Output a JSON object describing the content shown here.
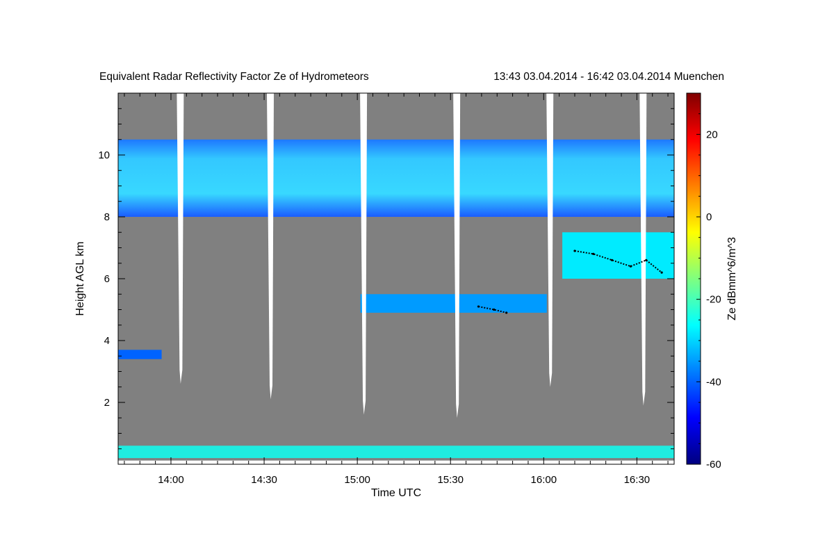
{
  "chart_data": {
    "type": "heatmap",
    "title": "Equivalent Radar Reflectivity Factor Ze of Hydrometeors",
    "time_range_label": "13:43 03.04.2014 - 16:42 03.04.2014 Muenchen",
    "xlabel": "Time UTC",
    "ylabel": "Height AGL km",
    "colorbar_label": "Ze dBmm^6/m^3",
    "x_range_minutes_utc": [
      823,
      1002
    ],
    "y_range_km": [
      0,
      12
    ],
    "x_ticks": [
      {
        "minute": 840,
        "label": "14:00"
      },
      {
        "minute": 870,
        "label": "14:30"
      },
      {
        "minute": 900,
        "label": "15:00"
      },
      {
        "minute": 930,
        "label": "15:30"
      },
      {
        "minute": 960,
        "label": "16:00"
      },
      {
        "minute": 990,
        "label": "16:30"
      }
    ],
    "y_ticks": [
      {
        "value": 2,
        "label": "2"
      },
      {
        "value": 4,
        "label": "4"
      },
      {
        "value": 6,
        "label": "6"
      },
      {
        "value": 8,
        "label": "8"
      },
      {
        "value": 10,
        "label": "10"
      }
    ],
    "colorbar_range_dbz": [
      -60,
      30
    ],
    "colorbar_ticks": [
      {
        "value": -60,
        "label": "-60"
      },
      {
        "value": -40,
        "label": "-40"
      },
      {
        "value": -20,
        "label": "-20"
      },
      {
        "value": 0,
        "label": "0"
      },
      {
        "value": 20,
        "label": "20"
      }
    ],
    "colors": {
      "background_no_signal": "#808080",
      "missing_data": "#ffffff",
      "melting_layer_marker": "#000000"
    },
    "colormap": [
      "#00007f",
      "#0000ff",
      "#007fff",
      "#00ffff",
      "#7fff7f",
      "#ffff00",
      "#ff7f00",
      "#ff0000",
      "#7f0000"
    ],
    "cloud_regions": [
      {
        "name": "cirrus-layer",
        "start_min": 823,
        "end_min": 1002,
        "base_km": 8.0,
        "top_km": 10.5,
        "ze_dbz": -30
      },
      {
        "name": "mid-level-cloud",
        "start_min": 966,
        "end_min": 1002,
        "base_km": 6.0,
        "top_km": 7.5,
        "ze_dbz": -28
      },
      {
        "name": "mid-level-band",
        "start_min": 901,
        "end_min": 961,
        "base_km": 4.9,
        "top_km": 5.5,
        "ze_dbz": -35
      },
      {
        "name": "low-fragment",
        "start_min": 823,
        "end_min": 837,
        "base_km": 3.4,
        "top_km": 3.7,
        "ze_dbz": -40
      },
      {
        "name": "near-surface-clutter",
        "start_min": 823,
        "end_min": 1002,
        "base_km": 0.2,
        "top_km": 0.6,
        "ze_dbz": -25
      }
    ],
    "missing_data_gaps": [
      {
        "minute": 843,
        "bottom_km": 2.6
      },
      {
        "minute": 872,
        "bottom_km": 2.1
      },
      {
        "minute": 902,
        "bottom_km": 1.6
      },
      {
        "minute": 932,
        "bottom_km": 1.5
      },
      {
        "minute": 962,
        "bottom_km": 2.5
      },
      {
        "minute": 992,
        "bottom_km": 1.9
      }
    ],
    "melting_layer_trace": [
      {
        "minute": 939,
        "km": 5.1
      },
      {
        "minute": 944,
        "km": 5.0
      },
      {
        "minute": 948,
        "km": 4.9
      },
      {
        "minute": 970,
        "km": 6.9
      },
      {
        "minute": 976,
        "km": 6.8
      },
      {
        "minute": 982,
        "km": 6.6
      },
      {
        "minute": 988,
        "km": 6.4
      },
      {
        "minute": 993,
        "km": 6.6
      },
      {
        "minute": 998,
        "km": 6.2
      }
    ]
  }
}
